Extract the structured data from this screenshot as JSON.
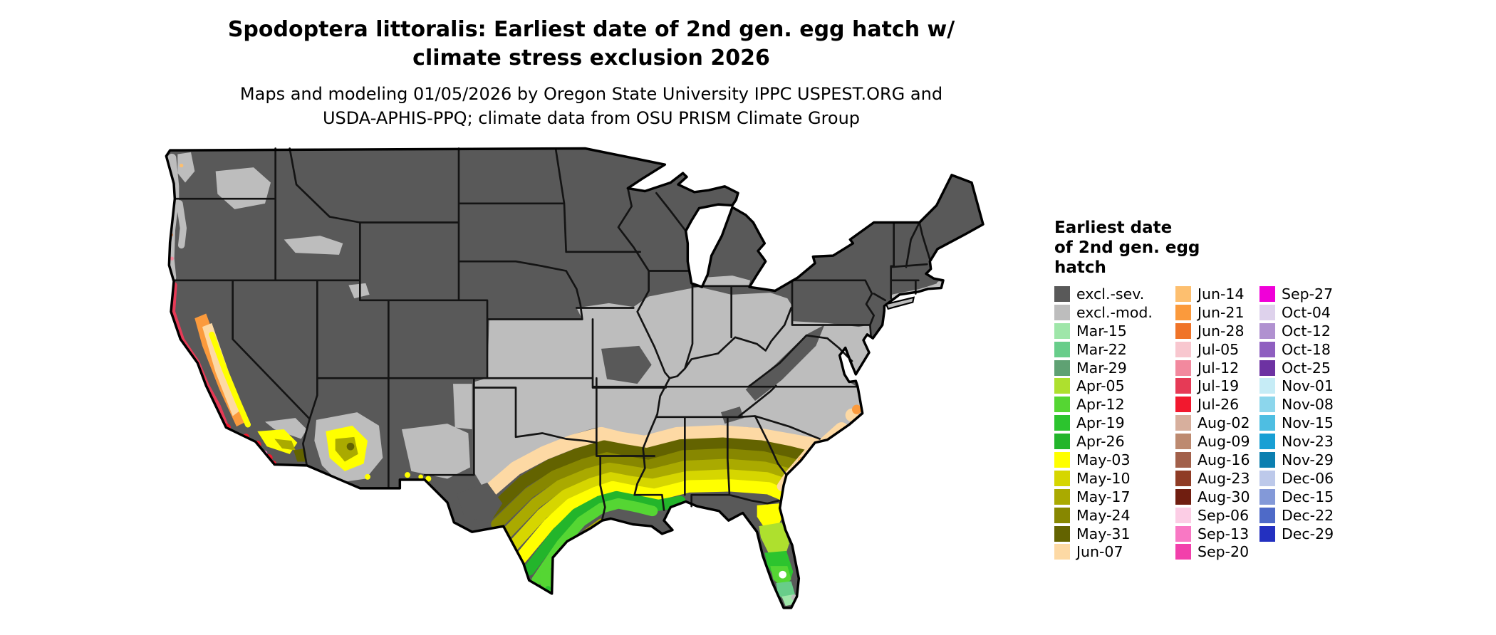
{
  "header": {
    "title_line1": "Spodoptera littoralis: Earliest date of 2nd gen. egg hatch w/",
    "title_line2": "climate stress exclusion 2026",
    "subtitle_line1": "Maps and modeling 01/05/2026 by Oregon State University IPPC USPEST.ORG and",
    "subtitle_line2": "USDA-APHIS-PPQ; climate data from OSU PRISM Climate Group"
  },
  "legend": {
    "title_line1": "Earliest date",
    "title_line2": "of 2nd gen. egg",
    "title_line3": "hatch",
    "columns": [
      [
        {
          "key": "exclsev",
          "label": "excl.-sev.",
          "color": "#595959"
        },
        {
          "key": "exclmod",
          "label": "excl.-mod.",
          "color": "#bdbdbd"
        },
        {
          "key": "Mar15",
          "label": "Mar-15",
          "color": "#9fe6a9"
        },
        {
          "key": "Mar22",
          "label": "Mar-22",
          "color": "#68cd8a"
        },
        {
          "key": "Mar29",
          "label": "Mar-29",
          "color": "#5fa173"
        },
        {
          "key": "Apr05",
          "label": "Apr-05",
          "color": "#aee02e"
        },
        {
          "key": "Apr12",
          "label": "Apr-12",
          "color": "#55d633"
        },
        {
          "key": "Apr19",
          "label": "Apr-19",
          "color": "#2cc42e"
        },
        {
          "key": "Apr26",
          "label": "Apr-26",
          "color": "#23b52b"
        },
        {
          "key": "May03",
          "label": "May-03",
          "color": "#ffff00"
        },
        {
          "key": "May10",
          "label": "May-10",
          "color": "#d6d600"
        },
        {
          "key": "May17",
          "label": "May-17",
          "color": "#aaaa00"
        },
        {
          "key": "May24",
          "label": "May-24",
          "color": "#878700"
        },
        {
          "key": "May31",
          "label": "May-31",
          "color": "#636300"
        },
        {
          "key": "Jun07",
          "label": "Jun-07",
          "color": "#fdd9a4"
        }
      ],
      [
        {
          "key": "Jun14",
          "label": "Jun-14",
          "color": "#fdbf6f"
        },
        {
          "key": "Jun21",
          "label": "Jun-21",
          "color": "#fb9a3c"
        },
        {
          "key": "Jun28",
          "label": "Jun-28",
          "color": "#f07428"
        },
        {
          "key": "Jul05",
          "label": "Jul-05",
          "color": "#f8c7cf"
        },
        {
          "key": "Jul12",
          "label": "Jul-12",
          "color": "#f2899e"
        },
        {
          "key": "Jul19",
          "label": "Jul-19",
          "color": "#e63a56"
        },
        {
          "key": "Jul26",
          "label": "Jul-26",
          "color": "#f2182e"
        },
        {
          "key": "Aug02",
          "label": "Aug-02",
          "color": "#d7af9d"
        },
        {
          "key": "Aug09",
          "label": "Aug-09",
          "color": "#bd8a70"
        },
        {
          "key": "Aug16",
          "label": "Aug-16",
          "color": "#a2604a"
        },
        {
          "key": "Aug23",
          "label": "Aug-23",
          "color": "#8f3c25"
        },
        {
          "key": "Aug30",
          "label": "Aug-30",
          "color": "#701e10"
        },
        {
          "key": "Sep06",
          "label": "Sep-06",
          "color": "#fccde5"
        },
        {
          "key": "Sep13",
          "label": "Sep-13",
          "color": "#f978c4"
        },
        {
          "key": "Sep20",
          "label": "Sep-20",
          "color": "#f240ab"
        }
      ],
      [
        {
          "key": "Sep27",
          "label": "Sep-27",
          "color": "#f000d8"
        },
        {
          "key": "Oct04",
          "label": "Oct-04",
          "color": "#ded2ec"
        },
        {
          "key": "Oct12",
          "label": "Oct-12",
          "color": "#b091d0"
        },
        {
          "key": "Oct18",
          "label": "Oct-18",
          "color": "#8f5fc0"
        },
        {
          "key": "Oct25",
          "label": "Oct-25",
          "color": "#6d32a2"
        },
        {
          "key": "Nov01",
          "label": "Nov-01",
          "color": "#c6ecf6"
        },
        {
          "key": "Nov08",
          "label": "Nov-08",
          "color": "#8cd6ec"
        },
        {
          "key": "Nov15",
          "label": "Nov-15",
          "color": "#4ebee2"
        },
        {
          "key": "Nov23",
          "label": "Nov-23",
          "color": "#189fd4"
        },
        {
          "key": "Nov29",
          "label": "Nov-29",
          "color": "#0b7fb0"
        },
        {
          "key": "Dec06",
          "label": "Dec-06",
          "color": "#bdc9ea"
        },
        {
          "key": "Dec15",
          "label": "Dec-15",
          "color": "#8399d8"
        },
        {
          "key": "Dec22",
          "label": "Dec-22",
          "color": "#4e6ac8"
        },
        {
          "key": "Dec29",
          "label": "Dec-29",
          "color": "#2330c0"
        }
      ]
    ]
  }
}
